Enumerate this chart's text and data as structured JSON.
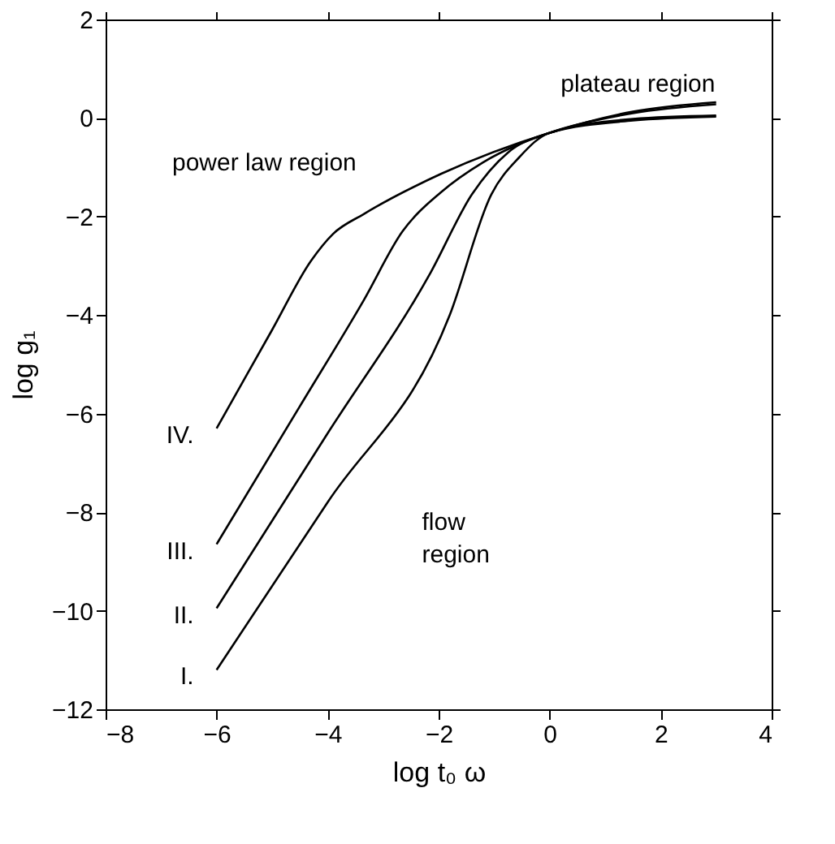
{
  "chart_data": {
    "type": "line",
    "xlabel": "log  t₀ ω",
    "ylabel": "log g₁",
    "xlim": [
      -8,
      4
    ],
    "ylim": [
      -12,
      2
    ],
    "xticks": [
      -8,
      -6,
      -4,
      -2,
      0,
      2,
      4
    ],
    "yticks": [
      -12,
      -10,
      -8,
      -6,
      -4,
      -2,
      0,
      2
    ],
    "grid": false,
    "marker": "none",
    "line_style": "solid",
    "annotations": [
      "power law region",
      "plateau region",
      "flow region"
    ],
    "series": [
      {
        "name": "IV.",
        "color": "#000000",
        "x": [
          -6,
          -5,
          -4.3,
          -3.9,
          -3.35,
          -1.95,
          0,
          1.5,
          3
        ],
        "values": [
          -6.3,
          -4.3,
          -2.9,
          -2.35,
          -1.95,
          -1.13,
          -0.3,
          0.13,
          0.32
        ]
      },
      {
        "name": "III.",
        "color": "#000000",
        "x": [
          -6,
          -4.5,
          -3.35,
          -2.65,
          -1.95,
          -1.2,
          0,
          1.5,
          3
        ],
        "values": [
          -8.65,
          -5.85,
          -3.7,
          -2.3,
          -1.5,
          -0.9,
          -0.3,
          0.1,
          0.28
        ]
      },
      {
        "name": "II.",
        "color": "#000000",
        "x": [
          -6,
          -4,
          -2.15,
          -1.4,
          -0.75,
          0,
          1.5,
          3
        ],
        "values": [
          -9.95,
          -6.4,
          -3.15,
          -1.55,
          -0.7,
          -0.3,
          -0.02,
          0.05
        ]
      },
      {
        "name": "I.",
        "color": "#000000",
        "x": [
          -6,
          -4,
          -1.8,
          -1.05,
          -0.55,
          0,
          1.5,
          3
        ],
        "values": [
          -11.2,
          -7.8,
          -4.0,
          -1.55,
          -0.8,
          -0.3,
          -0.05,
          0.03
        ]
      }
    ]
  }
}
